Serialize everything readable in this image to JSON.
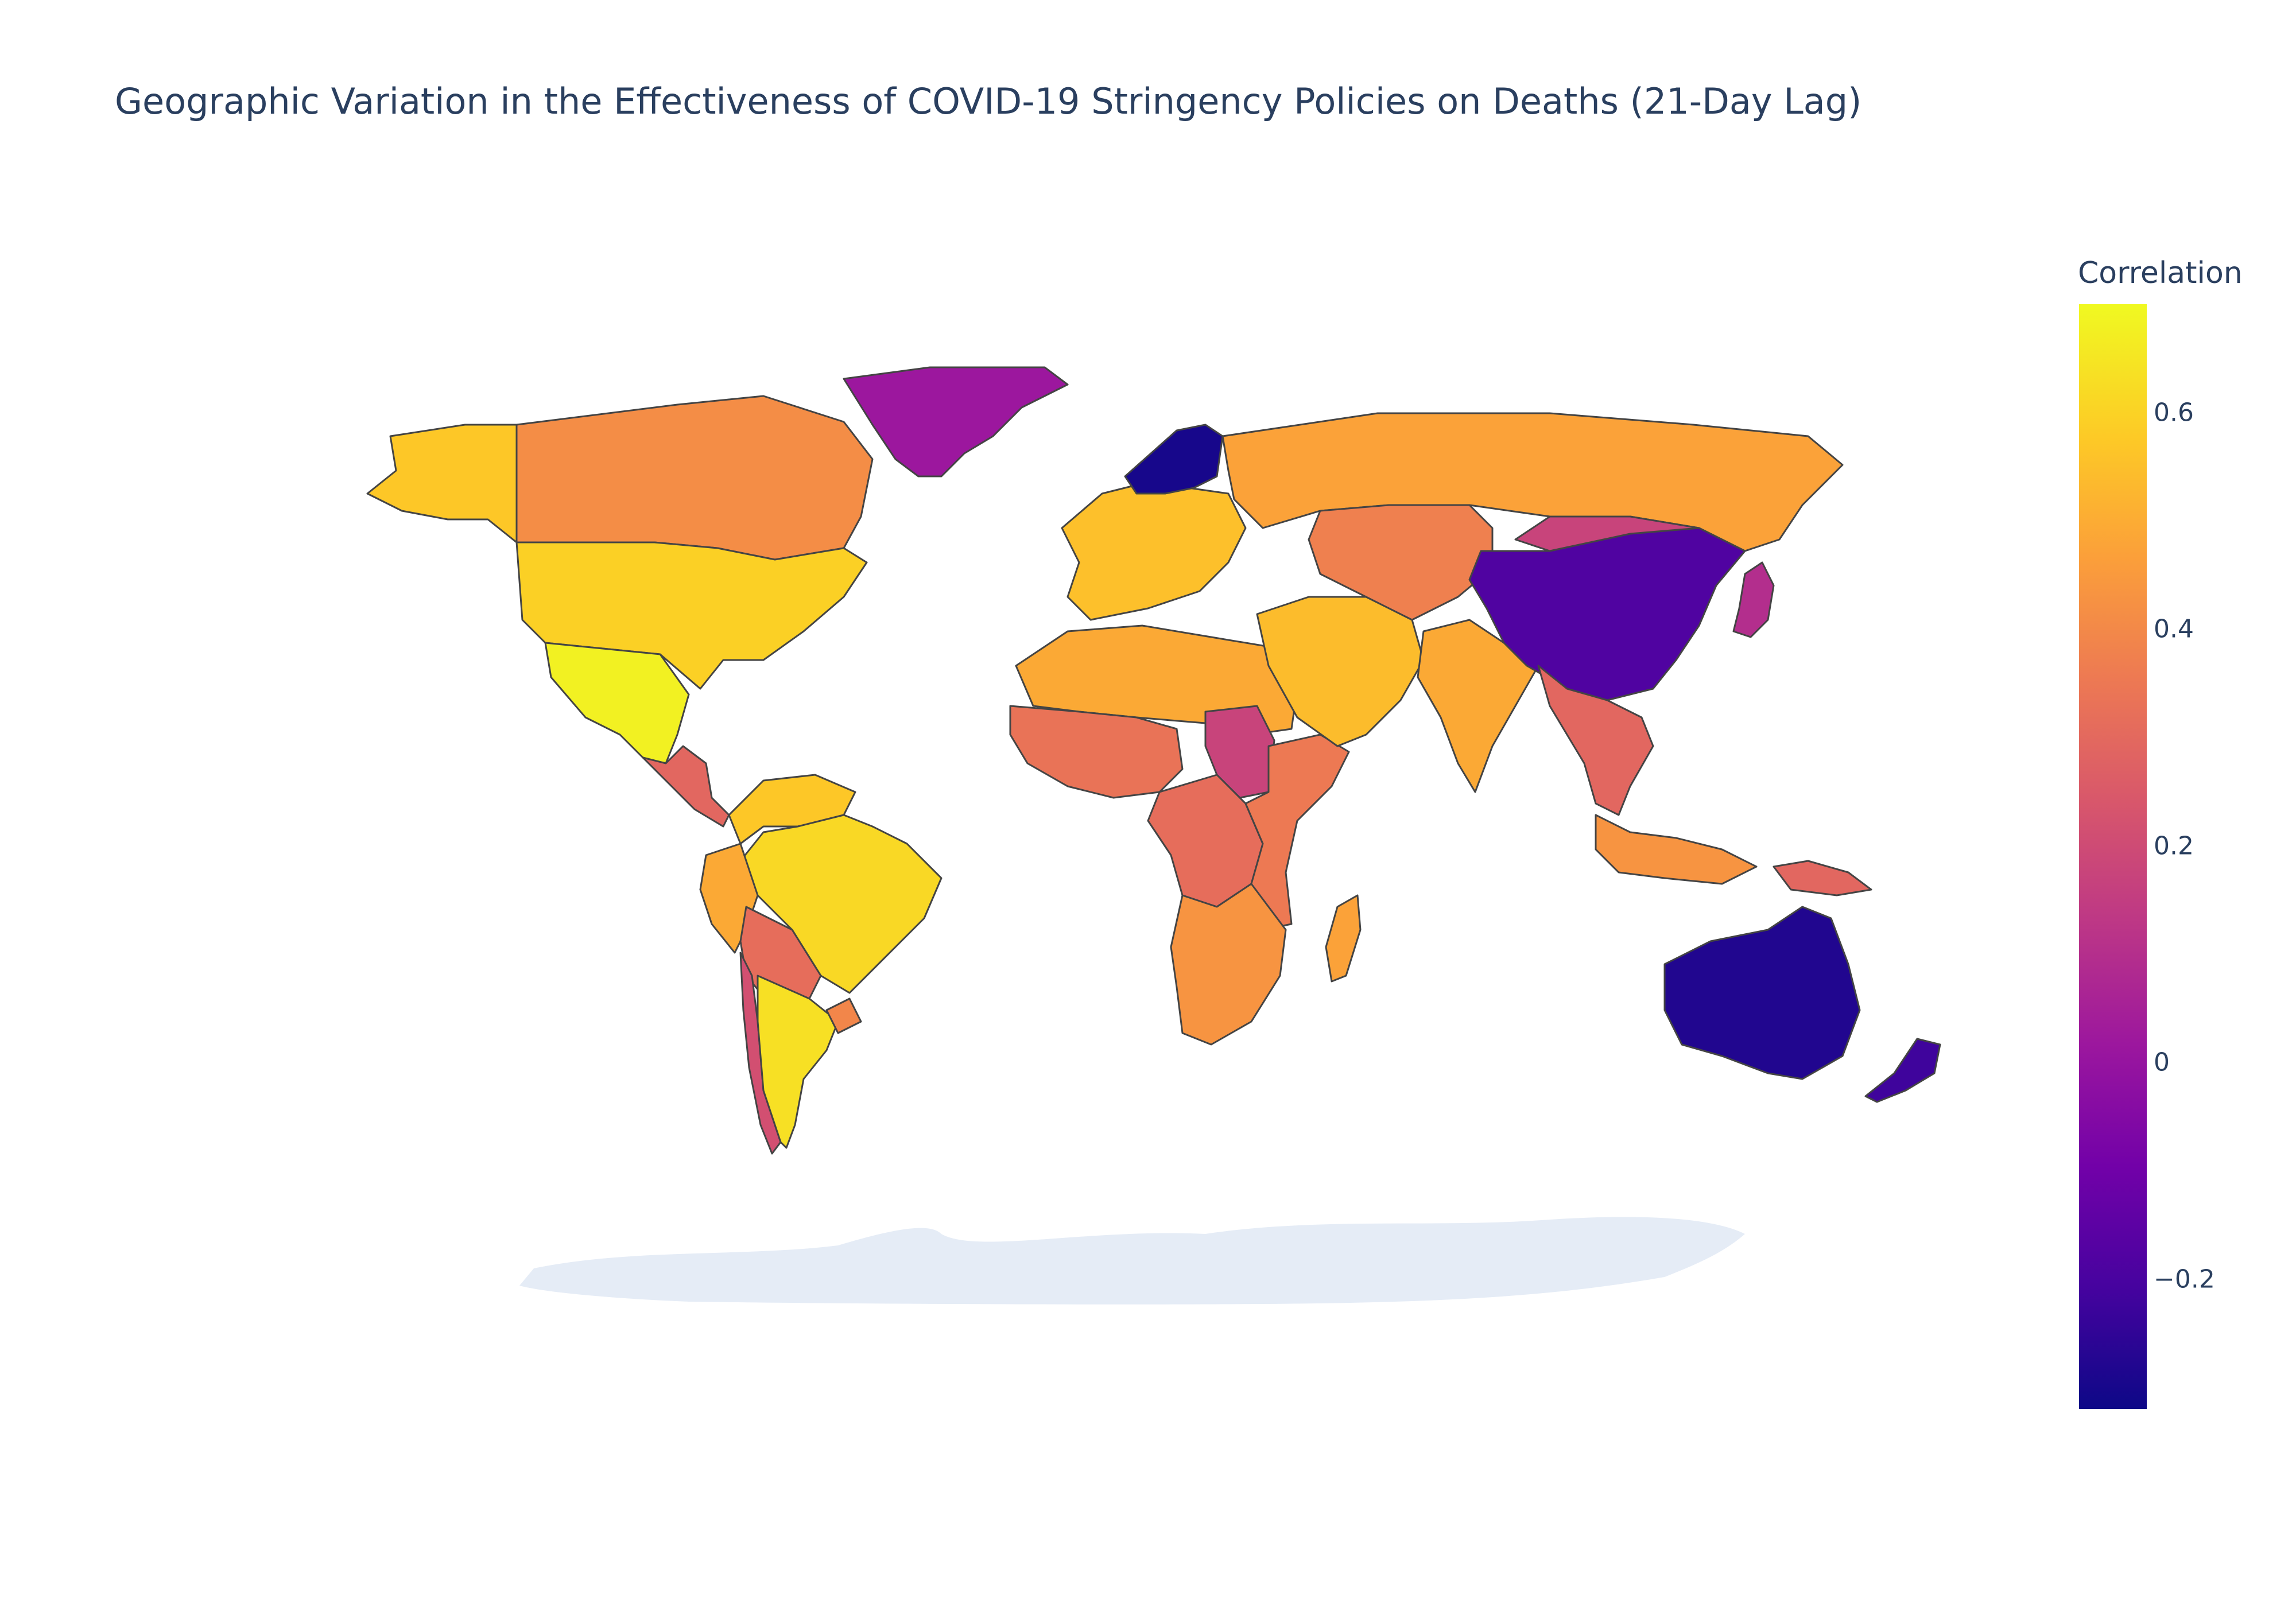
{
  "header": {
    "title": "Geographic Variation in the Effectiveness of COVID-19 Stringency Policies on Deaths (21-Day Lag)"
  },
  "colorbar": {
    "title": "Correlation",
    "range": [
      -0.32,
      0.7
    ],
    "ticks": [
      {
        "value": 0.6,
        "label": "0.6"
      },
      {
        "value": 0.4,
        "label": "0.4"
      },
      {
        "value": 0.2,
        "label": "0.2"
      },
      {
        "value": 0.0,
        "label": "0"
      },
      {
        "value": -0.2,
        "label": "−0.2"
      }
    ],
    "colorscale": [
      "#0d0887",
      "#46039f",
      "#7201a8",
      "#9c179e",
      "#bd3786",
      "#d8576b",
      "#ed7953",
      "#fb9f3a",
      "#fdca26",
      "#f0f921"
    ]
  },
  "map": {
    "land_color": "#e5ecf6",
    "border_color": "#444444",
    "regions": [
      {
        "name": "canada",
        "value": 0.42
      },
      {
        "name": "alaska",
        "value": 0.58
      },
      {
        "name": "usa",
        "value": 0.6
      },
      {
        "name": "mexico",
        "value": 0.68
      },
      {
        "name": "central-america",
        "value": 0.3
      },
      {
        "name": "greenland",
        "value": 0.02
      },
      {
        "name": "colombia-venezuela",
        "value": 0.58
      },
      {
        "name": "brazil",
        "value": 0.62
      },
      {
        "name": "peru",
        "value": 0.5
      },
      {
        "name": "bolivia-paraguay",
        "value": 0.32
      },
      {
        "name": "chile",
        "value": 0.22
      },
      {
        "name": "argentina",
        "value": 0.64
      },
      {
        "name": "uruguay",
        "value": 0.4
      },
      {
        "name": "western-europe",
        "value": 0.56
      },
      {
        "name": "nordic",
        "value": -0.3
      },
      {
        "name": "russia",
        "value": 0.48
      },
      {
        "name": "north-africa",
        "value": 0.5
      },
      {
        "name": "west-africa",
        "value": 0.34
      },
      {
        "name": "sudan",
        "value": 0.18
      },
      {
        "name": "central-africa",
        "value": 0.32
      },
      {
        "name": "east-africa",
        "value": 0.36
      },
      {
        "name": "southern-africa",
        "value": 0.44
      },
      {
        "name": "madagascar",
        "value": 0.48
      },
      {
        "name": "middle-east",
        "value": 0.55
      },
      {
        "name": "central-asia",
        "value": 0.38
      },
      {
        "name": "india",
        "value": 0.5
      },
      {
        "name": "china",
        "value": -0.18
      },
      {
        "name": "mongolia",
        "value": 0.18
      },
      {
        "name": "japan",
        "value": 0.1
      },
      {
        "name": "southeast-asia",
        "value": 0.3
      },
      {
        "name": "indonesia",
        "value": 0.44
      },
      {
        "name": "papua-new-guinea",
        "value": 0.3
      },
      {
        "name": "australia",
        "value": -0.28
      },
      {
        "name": "new-zealand",
        "value": -0.22
      }
    ]
  }
}
